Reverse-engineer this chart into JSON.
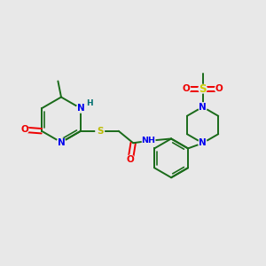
{
  "background_color": "#e8e8e8",
  "bond_color": "#1a6b1a",
  "bond_width": 1.4,
  "atom_colors": {
    "C": "#1a6b1a",
    "N": "#0000ee",
    "O": "#ee0000",
    "S_thio": "#bbbb00",
    "S_sulfonyl": "#cccc00",
    "H": "#007070"
  },
  "figsize": [
    3.0,
    3.0
  ],
  "dpi": 100,
  "xlim": [
    0,
    10
  ],
  "ylim": [
    0,
    10
  ]
}
